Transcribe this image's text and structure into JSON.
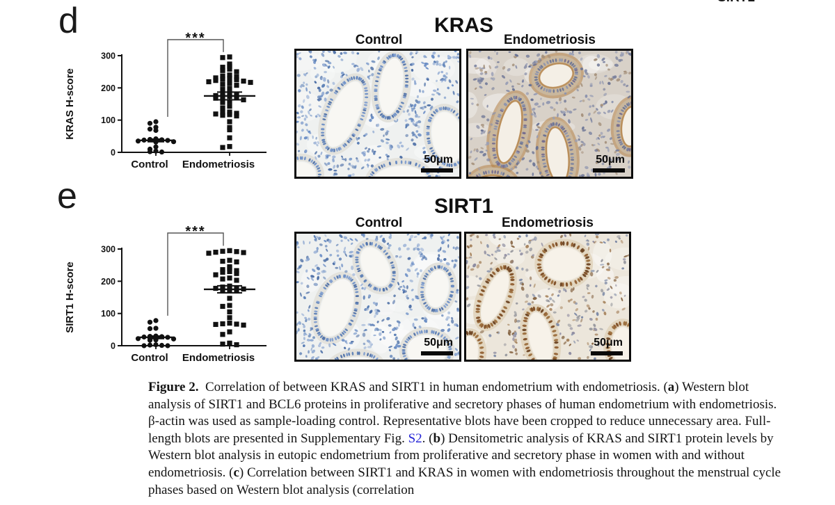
{
  "top_right_clipped_label": "SIRT1",
  "panels": [
    {
      "id": "d",
      "label": "d",
      "micrograph_title": "KRAS",
      "column_headers": [
        "Control",
        "Endometriosis"
      ],
      "scale_bar_label": "50μm"
    },
    {
      "id": "e",
      "label": "e",
      "micrograph_title": "SIRT1",
      "column_headers": [
        "Control",
        "Endometriosis"
      ],
      "scale_bar_label": "50μm"
    }
  ],
  "chart_data": [
    {
      "type": "scatter",
      "panel": "d",
      "title": "KRAS",
      "ylabel": "KRAS H-score",
      "ylim": [
        0,
        300
      ],
      "yticks": [
        0,
        100,
        200,
        300
      ],
      "categories": [
        "Control",
        "Endometriosis"
      ],
      "significance": "***",
      "series": [
        {
          "name": "Control",
          "marker": "circle",
          "values": [
            95,
            90,
            78,
            72,
            68,
            42,
            40,
            39,
            38,
            37,
            35,
            33,
            32,
            17,
            10,
            4,
            2,
            1
          ],
          "mean": 37,
          "sem": 4
        },
        {
          "name": "Endometriosis",
          "marker": "square",
          "values": [
            296,
            294,
            274,
            267,
            264,
            258,
            254,
            250,
            240,
            237,
            234,
            231,
            229,
            227,
            225,
            223,
            221,
            219,
            217,
            214,
            211,
            208,
            198,
            195,
            183,
            180,
            178,
            176,
            174,
            172,
            170,
            168,
            163,
            158,
            155,
            143,
            138,
            125,
            123,
            121,
            119,
            117,
            115,
            113,
            95,
            77,
            70,
            45,
            18,
            15
          ],
          "mean": 175,
          "sem": 12
        }
      ]
    },
    {
      "type": "scatter",
      "panel": "e",
      "title": "SIRT1",
      "ylabel": "SIRT1 H-score",
      "ylim": [
        0,
        300
      ],
      "yticks": [
        0,
        100,
        200,
        300
      ],
      "categories": [
        "Control",
        "Endometriosis"
      ],
      "significance": "***",
      "series": [
        {
          "name": "Control",
          "marker": "circle",
          "values": [
            78,
            73,
            54,
            53,
            30,
            29,
            28,
            27,
            26,
            22,
            21,
            18,
            17,
            3,
            2,
            1,
            0,
            0
          ],
          "mean": 26,
          "sem": 4
        },
        {
          "name": "Endometriosis",
          "marker": "square",
          "values": [
            295,
            293,
            292,
            290,
            289,
            287,
            265,
            262,
            260,
            245,
            240,
            236,
            233,
            230,
            228,
            224,
            220,
            210,
            207,
            203,
            185,
            182,
            180,
            178,
            176,
            174,
            172,
            170,
            147,
            125,
            122,
            105,
            87,
            70,
            68,
            67,
            66,
            64,
            43,
            35,
            8,
            6,
            5,
            3
          ],
          "mean": 175,
          "sem": 11
        }
      ]
    }
  ],
  "caption": {
    "segments": [
      {
        "style": "bold",
        "text": "Figure 2."
      },
      {
        "style": "normal",
        "text": " Correlation of between KRAS and SIRT1 in human endometrium with endometriosis. ("
      },
      {
        "style": "bold",
        "text": "a"
      },
      {
        "style": "normal",
        "text": ") Western blot analysis of SIRT1 and BCL6 proteins in proliferative and secretory phases of human endometrium with endometriosis. β-actin was used as sample-loading control. Representative blots have been cropped to reduce unnecessary area. Full-length blots are presented in Supplementary Fig. "
      },
      {
        "style": "link",
        "text": "S2"
      },
      {
        "style": "normal",
        "text": ". ("
      },
      {
        "style": "bold",
        "text": "b"
      },
      {
        "style": "normal",
        "text": ") Densitometric analysis of KRAS and SIRT1 protein levels by Western blot analysis in eutopic endometrium from proliferative and secretory phase in women with and without endometriosis. ("
      },
      {
        "style": "bold",
        "text": "c"
      },
      {
        "style": "normal",
        "text": ") Correlation between SIRT1 and KRAS in women with endometriosis throughout the menstrual cycle phases based on Western blot analysis (correlation"
      }
    ]
  },
  "colors": {
    "link_blue": "#2323d6",
    "marker_black": "#111111",
    "bracket_gray": "#555555",
    "histology": {
      "control": {
        "bg": "#eff1f0",
        "lumen": "#f8f7f3",
        "cyto": "#e3e2dc",
        "epi": [
          "#6b8ec5",
          "#597db4",
          "#7f9dce",
          "#4d6fa6"
        ],
        "stroma": [
          "#6b8ec5",
          "#8aa5cf",
          "#597db4",
          "#9fb5d8",
          "#4d6fa6"
        ],
        "stain": null
      },
      "kras_endo": {
        "bg": "#d8d1c8",
        "lumen": "#f4efe6",
        "cyto": "#c9b79d",
        "epi": [
          "#79819f",
          "#6a7394",
          "#8d94ae",
          "#756d8e"
        ],
        "stroma": [
          "#79819f",
          "#9a9fb5",
          "#6a7394",
          "#a5917c",
          "#8d94ae"
        ],
        "stain": "#b0793a"
      },
      "sirt1_endo": {
        "bg": "#ece6db",
        "lumen": "#f7f2e9",
        "cyto": "#e2d6c0",
        "epi": [
          "#7c4a21",
          "#8f5c2f",
          "#69401e",
          "#9a6b3a"
        ],
        "stroma": [
          "#8d8ba0",
          "#7b88a5",
          "#a88560",
          "#97989e",
          "#8a6a4a"
        ],
        "stain": null
      }
    }
  }
}
